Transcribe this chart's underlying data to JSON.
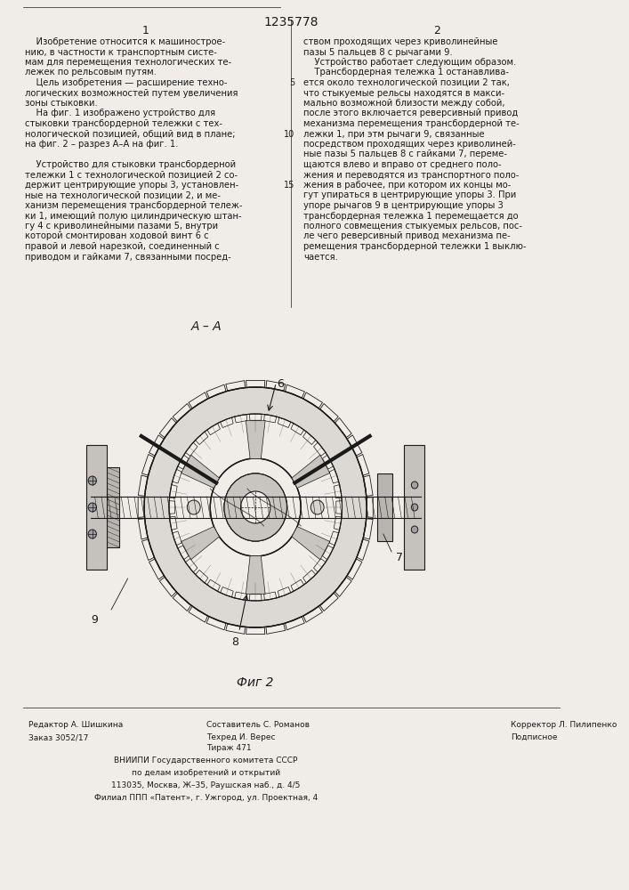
{
  "patent_number": "1235778",
  "col1_label": "1",
  "col2_label": "2",
  "background_color": "#f0ede8",
  "text_color": "#1a1a1a",
  "title_fontsize": 11,
  "body_fontsize": 8.5,
  "col1_text": "    Изобретение относится к машинострое-\nнию, в частности к транспортным систе-\nмам для перемещения технологических те-\nлежек по рельсовым путям.\n    Цель изобретения — расширение техно-\nлогических возможностей путем увеличения\nзоны стыковки.\n    На фиг. 1 изображено устройство для\nстыковки трансбордерной тележки с тех-\nнологической позицией, общий вид в плане;\nна фиг. 2 – разрез А–А на фиг. 1.\n\n    Устройство для стыковки трансбордерной\nтележки 1 с технологической позицией 2 со-\nдержит центрирующие упоры 3, установлен-\nные на технологической позиции 2, и ме-\nханизм перемещения трансбордерной тележ-\nки 1, имеющий полую цилиндрическую штан-\nгу 4 с криволинейными пазами 5, внутри\nкоторой смонтирован ходовой винт 6 с\nправой и левой нарезкой, соединенный с\nприводом и гайками 7, связанными посред-",
  "col2_text": "ством проходящих через криволинейные\nпазы 5 пальцев 8 с рычагами 9.\n    Устройство работает следующим образом.\n    Трансбордерная тележка 1 останавлива-\nется около технологической позиции 2 так,\nчто стыкуемые рельсы находятся в макси-\nмально возможной близости между собой,\nпосле этого включается реверсивный привод\nмеханизма перемещения трансбордерной те-\nлежки 1, при этм рычаги 9, связанные\nпосредством проходящих через криволиней-\nные пазы 5 пальцев 8 с гайками 7, переме-\nщаются влево и вправо от среднего поло-\nжения и переводятся из транспортного поло-\nжения в рабочее, при котором их концы мо-\nгут упираться в центрирующие упоры 3. При\nупоре рычагов 9 в центрирующие упоры 3\nтрансбордерная тележка 1 перемещается до\nполного совмещения стыкуемых рельсов, пос-\nле чего реверсивный привод механизма пе-\nремещения трансбордерной тележки 1 выклю-\nчается.",
  "col2_line_numbers": [
    5,
    10,
    15
  ],
  "section_label": "А – А",
  "fig2_caption": "Фиг 2",
  "footer_left_col1": "Редактор А. Шишкина",
  "footer_left_col2": "Заказ 3052/17",
  "footer_mid_col1": "Составитель С. Романов",
  "footer_mid_col2": "Тираж 471",
  "footer_mid_col3": "ВНИИПИ Государственного комитета СССР",
  "footer_mid_col4": "по делам изобретений и открытий",
  "footer_mid_col5": "113035, Москва, Ж–35, Раушская наб., д. 4/5",
  "footer_mid_col6": "Филиал ППП «Патент», г. Ужгород, ул. Проектная, 4",
  "footer_right_col1": "Корректор Л. Пилипенко",
  "footer_right_col2": "Подписное",
  "footer_techred": "Техред И. Верес"
}
